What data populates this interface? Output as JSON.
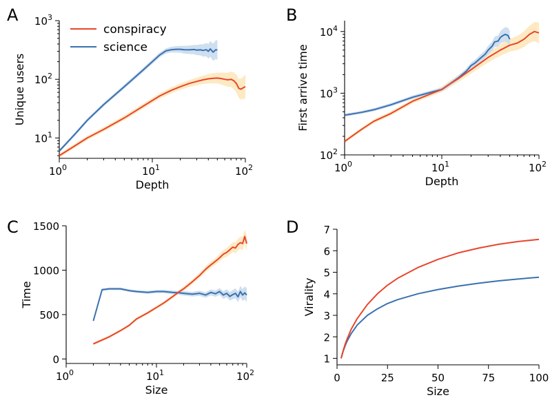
{
  "colors": {
    "conspiracy": "#e8452c",
    "science": "#3a70b0",
    "conspiracy_band": "#fde6b8",
    "science_band": "#c6d9ec"
  },
  "legend": {
    "conspiracy": "conspiracy",
    "science": "science"
  },
  "chart_data": [
    {
      "panel": "A",
      "type": "line",
      "xscale": "log",
      "yscale": "log",
      "xlabel": "Depth",
      "ylabel": "Unique users",
      "xlim": [
        1,
        100
      ],
      "ylim": [
        4.5,
        1000
      ],
      "xticks": [
        1,
        10,
        100
      ],
      "yticks": [
        10,
        100,
        1000
      ],
      "series": [
        {
          "name": "conspiracy",
          "x": [
            1,
            1.5,
            2,
            3,
            5,
            8,
            12,
            16,
            20,
            25,
            30,
            35,
            40,
            45,
            50,
            55,
            60,
            65,
            70,
            75,
            80,
            85,
            90,
            95,
            100
          ],
          "y": [
            5,
            7.5,
            10,
            14,
            22,
            35,
            52,
            65,
            75,
            85,
            92,
            98,
            102,
            104,
            105,
            103,
            100,
            98,
            100,
            95,
            85,
            70,
            68,
            72,
            75
          ]
        },
        {
          "name": "science",
          "x": [
            1,
            1.5,
            2,
            3,
            5,
            8,
            12,
            14,
            16,
            18,
            20,
            22,
            25,
            28,
            30,
            33,
            35,
            38,
            40,
            42,
            45,
            48,
            50
          ],
          "y": [
            6,
            12,
            20,
            37,
            75,
            145,
            260,
            305,
            320,
            325,
            325,
            320,
            318,
            322,
            315,
            318,
            310,
            320,
            300,
            330,
            290,
            320,
            315
          ]
        }
      ]
    },
    {
      "panel": "B",
      "type": "line",
      "xscale": "log",
      "yscale": "log",
      "xlabel": "Depth",
      "ylabel": "First arrive time",
      "xlim": [
        1,
        100
      ],
      "ylim": [
        100,
        15000
      ],
      "xticks": [
        1,
        10,
        100
      ],
      "yticks": [
        100,
        1000,
        10000
      ],
      "series": [
        {
          "name": "conspiracy",
          "x": [
            1,
            1.5,
            2,
            3,
            5,
            8,
            10,
            12,
            15,
            20,
            25,
            30,
            40,
            50,
            60,
            70,
            80,
            90,
            100
          ],
          "y": [
            165,
            260,
            350,
            470,
            740,
            1000,
            1150,
            1400,
            1750,
            2400,
            3100,
            3800,
            5000,
            6000,
            6500,
            7500,
            9000,
            10000,
            9500
          ]
        },
        {
          "name": "science",
          "x": [
            1,
            1.5,
            2,
            3,
            5,
            8,
            10,
            12,
            15,
            18,
            20,
            22,
            25,
            28,
            30,
            33,
            35,
            38,
            40,
            42,
            45,
            48,
            50
          ],
          "y": [
            440,
            490,
            540,
            650,
            860,
            1050,
            1150,
            1400,
            1800,
            2300,
            2800,
            3100,
            3700,
            4300,
            5000,
            5800,
            6800,
            7000,
            8000,
            8500,
            9000,
            8600,
            7500
          ]
        }
      ]
    },
    {
      "panel": "C",
      "type": "line",
      "xscale": "log",
      "yscale": "linear",
      "xlabel": "Size",
      "ylabel": "Time",
      "xlim": [
        1,
        100
      ],
      "ylim": [
        -50,
        1500
      ],
      "xticks": [
        1,
        10,
        100
      ],
      "yticks": [
        0,
        500,
        1000,
        1500
      ],
      "series": [
        {
          "name": "conspiracy",
          "x": [
            2,
            3,
            4,
            5,
            6,
            8,
            10,
            12,
            15,
            18,
            20,
            25,
            30,
            35,
            40,
            45,
            50,
            55,
            60,
            65,
            70,
            75,
            80,
            85,
            90,
            95,
            100
          ],
          "y": [
            170,
            250,
            320,
            380,
            450,
            520,
            580,
            630,
            700,
            760,
            790,
            870,
            940,
            1010,
            1060,
            1100,
            1140,
            1180,
            1200,
            1230,
            1260,
            1250,
            1290,
            1310,
            1300,
            1380,
            1300
          ]
        },
        {
          "name": "science",
          "x": [
            2,
            2.5,
            3,
            4,
            5,
            6,
            8,
            10,
            12,
            15,
            18,
            20,
            25,
            30,
            35,
            40,
            45,
            50,
            55,
            60,
            65,
            70,
            75,
            80,
            85,
            90,
            95,
            100
          ],
          "y": [
            430,
            780,
            790,
            790,
            770,
            760,
            750,
            760,
            760,
            750,
            745,
            740,
            730,
            740,
            720,
            750,
            735,
            760,
            720,
            740,
            705,
            725,
            740,
            700,
            760,
            720,
            745,
            720
          ]
        }
      ]
    },
    {
      "panel": "D",
      "type": "line",
      "xscale": "linear",
      "yscale": "linear",
      "xlabel": "Size",
      "ylabel": "Virality",
      "xlim": [
        0,
        100
      ],
      "ylim": [
        0.7,
        7
      ],
      "xticks": [
        0,
        25,
        50,
        75,
        100
      ],
      "yticks": [
        1,
        2,
        3,
        4,
        5,
        6,
        7
      ],
      "series": [
        {
          "name": "conspiracy",
          "x": [
            2,
            3,
            4,
            5,
            7,
            10,
            15,
            20,
            25,
            30,
            40,
            50,
            60,
            70,
            80,
            90,
            100
          ],
          "y": [
            1.0,
            1.35,
            1.65,
            1.9,
            2.35,
            2.85,
            3.5,
            4.0,
            4.4,
            4.72,
            5.22,
            5.6,
            5.9,
            6.12,
            6.3,
            6.43,
            6.53
          ]
        },
        {
          "name": "science",
          "x": [
            2,
            3,
            4,
            5,
            7,
            10,
            15,
            20,
            25,
            30,
            40,
            50,
            60,
            70,
            80,
            90,
            100
          ],
          "y": [
            1.0,
            1.32,
            1.58,
            1.8,
            2.15,
            2.55,
            3.0,
            3.3,
            3.55,
            3.73,
            4.0,
            4.2,
            4.36,
            4.49,
            4.6,
            4.69,
            4.77
          ]
        }
      ]
    }
  ]
}
